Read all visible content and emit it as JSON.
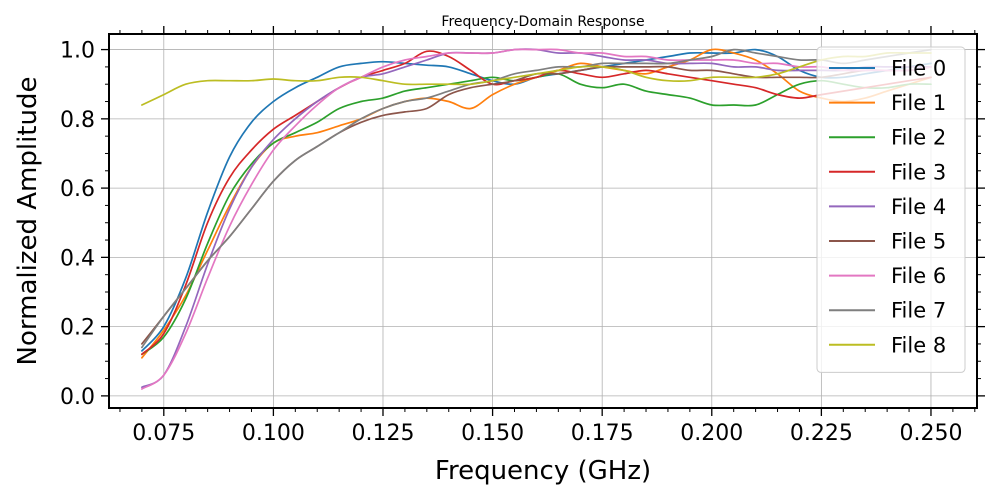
{
  "chart_data": {
    "type": "line",
    "title": "Frequency-Domain Response",
    "xlabel": "Frequency (GHz)",
    "ylabel": "Normalized Amplitude",
    "xlim": [
      0.0625,
      0.2605
    ],
    "ylim": [
      -0.035,
      1.045
    ],
    "x_ticks": [
      0.075,
      0.1,
      0.125,
      0.15,
      0.175,
      0.2,
      0.225,
      0.25
    ],
    "x_tick_labels": [
      "0.075",
      "0.100",
      "0.125",
      "0.150",
      "0.175",
      "0.200",
      "0.225",
      "0.250"
    ],
    "y_ticks": [
      0.0,
      0.2,
      0.4,
      0.6,
      0.8,
      1.0
    ],
    "y_tick_labels": [
      "0.0",
      "0.2",
      "0.4",
      "0.6",
      "0.8",
      "1.0"
    ],
    "grid": true,
    "legend_position": "right",
    "x": [
      0.07,
      0.075,
      0.08,
      0.085,
      0.09,
      0.095,
      0.1,
      0.105,
      0.11,
      0.115,
      0.12,
      0.125,
      0.13,
      0.135,
      0.14,
      0.145,
      0.15,
      0.155,
      0.16,
      0.165,
      0.17,
      0.175,
      0.18,
      0.185,
      0.19,
      0.195,
      0.2,
      0.205,
      0.21,
      0.215,
      0.22,
      0.225,
      0.23,
      0.235,
      0.24,
      0.245,
      0.25
    ],
    "series": [
      {
        "name": "File 0",
        "color": "#1f77b4",
        "values": [
          0.13,
          0.2,
          0.34,
          0.53,
          0.69,
          0.79,
          0.85,
          0.89,
          0.92,
          0.95,
          0.96,
          0.965,
          0.96,
          0.955,
          0.95,
          0.93,
          0.91,
          0.9,
          0.92,
          0.93,
          0.94,
          0.95,
          0.96,
          0.97,
          0.98,
          0.99,
          0.99,
          0.99,
          1.0,
          0.98,
          0.94,
          0.92,
          0.92,
          0.93,
          0.94,
          0.95,
          0.96
        ]
      },
      {
        "name": "File 1",
        "color": "#ff7f0e",
        "values": [
          0.11,
          0.19,
          0.29,
          0.42,
          0.55,
          0.66,
          0.73,
          0.75,
          0.76,
          0.78,
          0.8,
          0.83,
          0.85,
          0.86,
          0.85,
          0.83,
          0.87,
          0.9,
          0.92,
          0.94,
          0.96,
          0.95,
          0.94,
          0.93,
          0.95,
          0.97,
          1.0,
          0.99,
          0.97,
          0.93,
          0.88,
          0.86,
          0.85,
          0.86,
          0.88,
          0.9,
          0.92
        ]
      },
      {
        "name": "File 2",
        "color": "#2ca02c",
        "values": [
          0.12,
          0.17,
          0.28,
          0.44,
          0.58,
          0.67,
          0.73,
          0.76,
          0.79,
          0.83,
          0.85,
          0.86,
          0.88,
          0.89,
          0.9,
          0.91,
          0.92,
          0.91,
          0.92,
          0.93,
          0.9,
          0.89,
          0.9,
          0.88,
          0.87,
          0.86,
          0.84,
          0.84,
          0.84,
          0.87,
          0.9,
          0.91,
          0.9,
          0.89,
          0.89,
          0.9,
          0.9
        ]
      },
      {
        "name": "File 3",
        "color": "#d62728",
        "values": [
          0.12,
          0.18,
          0.32,
          0.5,
          0.63,
          0.71,
          0.77,
          0.81,
          0.85,
          0.89,
          0.92,
          0.94,
          0.96,
          0.995,
          0.98,
          0.94,
          0.9,
          0.91,
          0.92,
          0.94,
          0.93,
          0.92,
          0.93,
          0.94,
          0.93,
          0.92,
          0.91,
          0.9,
          0.89,
          0.87,
          0.86,
          0.87,
          0.88,
          0.89,
          0.9,
          0.91,
          0.92
        ]
      },
      {
        "name": "File 4",
        "color": "#9467bd",
        "values": [
          0.025,
          0.06,
          0.2,
          0.38,
          0.54,
          0.66,
          0.74,
          0.8,
          0.85,
          0.89,
          0.92,
          0.93,
          0.95,
          0.97,
          0.99,
          0.99,
          0.99,
          1.0,
          1.0,
          0.99,
          0.99,
          0.98,
          0.97,
          0.97,
          0.96,
          0.96,
          0.96,
          0.95,
          0.95,
          0.94,
          0.94,
          0.94,
          0.94,
          0.95,
          0.95,
          0.95,
          0.95
        ]
      },
      {
        "name": "File 5",
        "color": "#8c564b",
        "values": [
          0.15,
          0.23,
          0.31,
          0.39,
          0.46,
          0.54,
          0.62,
          0.68,
          0.72,
          0.76,
          0.79,
          0.81,
          0.82,
          0.83,
          0.87,
          0.89,
          0.9,
          0.91,
          0.93,
          0.93,
          0.94,
          0.95,
          0.95,
          0.95,
          0.95,
          0.94,
          0.94,
          0.93,
          0.92,
          0.92,
          0.92,
          0.92,
          0.93,
          0.94,
          0.94,
          0.94,
          0.95
        ]
      },
      {
        "name": "File 6",
        "color": "#e377c2",
        "values": [
          0.02,
          0.06,
          0.18,
          0.34,
          0.49,
          0.61,
          0.71,
          0.78,
          0.84,
          0.89,
          0.92,
          0.95,
          0.97,
          0.98,
          0.99,
          0.99,
          0.99,
          1.0,
          1.0,
          1.0,
          0.99,
          0.99,
          0.98,
          0.98,
          0.97,
          0.97,
          0.97,
          0.97,
          0.96,
          0.96,
          0.95,
          0.95,
          0.94,
          0.94,
          0.94,
          0.94,
          0.95
        ]
      },
      {
        "name": "File 7",
        "color": "#7f7f7f",
        "values": [
          0.14,
          0.23,
          0.31,
          0.39,
          0.46,
          0.54,
          0.62,
          0.68,
          0.72,
          0.76,
          0.8,
          0.83,
          0.85,
          0.86,
          0.88,
          0.9,
          0.91,
          0.93,
          0.94,
          0.95,
          0.95,
          0.96,
          0.96,
          0.96,
          0.96,
          0.97,
          0.98,
          1.0,
          0.99,
          0.98,
          0.97,
          0.97,
          0.96,
          0.97,
          0.98,
          0.99,
          1.0
        ]
      },
      {
        "name": "File 8",
        "color": "#bcbd22",
        "values": [
          0.84,
          0.87,
          0.9,
          0.91,
          0.91,
          0.91,
          0.915,
          0.91,
          0.91,
          0.92,
          0.92,
          0.91,
          0.9,
          0.9,
          0.9,
          0.9,
          0.91,
          0.92,
          0.93,
          0.94,
          0.95,
          0.95,
          0.94,
          0.92,
          0.91,
          0.91,
          0.92,
          0.92,
          0.92,
          0.93,
          0.95,
          0.97,
          0.98,
          0.98,
          0.99,
          0.99,
          0.99
        ]
      }
    ]
  }
}
